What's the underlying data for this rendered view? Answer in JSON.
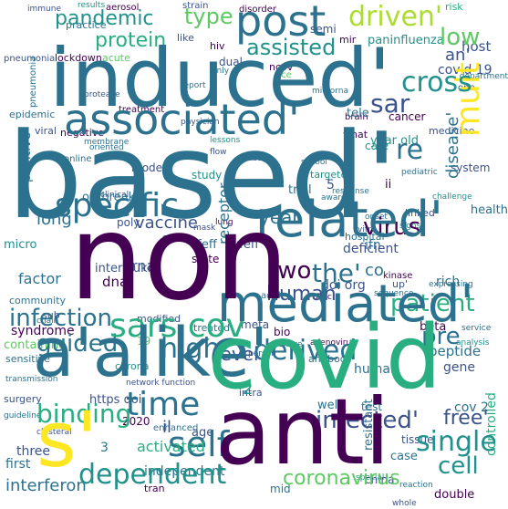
{
  "palette": {
    "dark_purple": "#440154",
    "blue_purple": "#3b528b",
    "teal": "#2c728e",
    "sea": "#21918c",
    "green": "#28ae80",
    "lime": "#5ec962",
    "yellow_green": "#addc30",
    "yellow": "#fde725",
    "background": "#ffffff"
  },
  "words": {
    "based": "based'",
    "induced": "induced'",
    "non": "non",
    "covid": "covid",
    "alike": "a'alike'",
    "anti": "anti",
    "s": "s'",
    "mediated": "mediated'",
    "related": "related'",
    "associated": "associated'",
    "post": "post",
    "specific": "specific",
    "sars_cov": "sars cov",
    "dependent": "dependent",
    "self": "self",
    "time": "time",
    "mult": "mult",
    "disease": "disease'",
    "driven": "driven'",
    "protein": "protein",
    "pandemic": "pandemic",
    "assisted": "assisted",
    "type": "type",
    "coronavirus": "coronavirus",
    "infected": "infected'",
    "free": "free'",
    "single": "single",
    "binding": "binding",
    "derived": "derived",
    "high": "high",
    "level": "level",
    "infection": "infection",
    "guided": "guided",
    "human": "human",
    "patient": "patient",
    "virus": "virus",
    "cross": "cross",
    "low": "low",
    "sar": "sar",
    "re": "re",
    "the": "the'",
    "two": "two",
    "year": "year",
    "vaccine": "vaccine",
    "cell": "cell",
    "interferon": "interferon",
    "factor": "factor",
    "syndrome": "syndrome",
    "outbreak": "outbreak",
    "positive": "positive",
    "long": "long",
    "micro": "micro",
    "hospital": "hospital",
    "controlled": "controlled",
    "gene": "gene",
    "peptide": "peptide",
    "epidemic": "epidemic",
    "human2": "human",
    "state": "state",
    "trial": "trial",
    "cancer": "cancer",
    "covid19": "covid 19",
    "host": "host",
    "an": "an'",
    "pre": "pre",
    "co": "co",
    "receptor": "receptor",
    "dna": "dna",
    "rna": "rna",
    "ufeff": "ufeff",
    "ufeff2": "ufeff",
    "interleukin": "interleukin",
    "semi": "semi",
    "paninfluenza": "paninfluenza",
    "acute": "acute",
    "deficient": "deficient",
    "activated": "activated",
    "independent": "independent",
    "il": "il",
    "age": "age",
    "sensitive": "sensitive",
    "resistant": "resistant",
    "test": "test",
    "ncov": "ncov",
    "lockdown": "lockdown",
    "practice": "practice",
    "immune": "immune",
    "hiv": "hiv",
    "dual": "dual",
    "china": "china",
    "case": "case",
    "tissue": "tissue",
    "mid": "mid",
    "care": "care",
    "viral": "viral",
    "treatment": "treatment",
    "health": "health",
    "model": "model",
    "study": "study",
    "surgery": "surgery",
    "community": "community",
    "three": "three",
    "first": "first",
    "corona": "corona",
    "rich": "rich",
    "beta": "beta",
    "https_doi": "https doi",
    "doi_org": "doi org",
    "year_old": "year old",
    "tele": "tele",
    "medicine": "medicine",
    "cov2": "cov 2",
    "ii": "ii",
    "linked": "linked",
    "targeted": "targeted",
    "system": "system",
    "double": "double",
    "number2": "2",
    "number19": "19",
    "number5": "5",
    "number3": "3",
    "year2020": "2020",
    "one": "one",
    "ace": "ace",
    "like": "like",
    "mir": "mir",
    "ifn": "ifn",
    "poly": "poly",
    "based2": "based",
    "well": "well",
    "disorder": "disorder",
    "strain": "strain",
    "aerosol": "aerosol",
    "results": "results",
    "risk": "risk",
    "pneumonia": "pneumonia",
    "kinase": "kinase",
    "sub": "sub",
    "antibody": "antibody",
    "spike": "spike",
    "intra": "intra",
    "adult": "adult",
    "clinical": "clinical",
    "response": "response",
    "flow": "flow",
    "network": "network",
    "enhanced": "enhanced",
    "tran": "tran",
    "whole": "whole",
    "chain": "chain",
    "school": "school",
    "brain": "brain",
    "membrane": "membrane",
    "online": "online",
    "negative": "negative",
    "what": "what",
    "up": "up'",
    "patient2": "patient",
    "onset": "onset",
    "signs": "signs",
    "meta": "meta",
    "bio": "bio",
    "containing": "containing",
    "modified": "modified",
    "treated": "treated",
    "culture": "culture",
    "person": "person",
    "service": "service",
    "guideline": "guideline",
    "clusteral": "clusteral",
    "reaction": "reaction",
    "special": "special",
    "network2": "network function",
    "challenge": "challenge",
    "analysis": "analysis",
    "adenovirus": "adenovirus",
    "microrna": "microrna",
    "report": "report",
    "only": "only",
    "expressing": "expressing",
    "lessons": "lessons",
    "aware": "aware",
    "vitro": "vitro",
    "department": "department",
    "protease": "protease",
    "pediatric": "pediatric",
    "oriented": "oriented",
    "transmission": "transmission",
    "physician": "physician",
    "zinc": "zinc",
    "sequence": "sequence",
    "lung": "lung",
    "mask": "mask"
  }
}
